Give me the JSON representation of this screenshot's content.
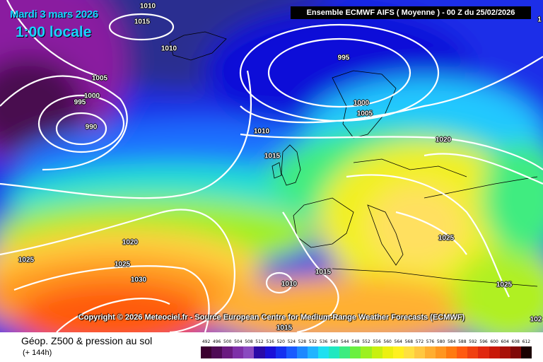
{
  "header": {
    "date": "Mardi 3 mars 2026",
    "local_time": "1:00 locale",
    "model": "Ensemble ECMWF AIFS  ( Moyenne )  - 00 Z du 25/02/2026"
  },
  "copyright": "Copyright © 2026 Meteociel.fr - Source European Centre for Medium-Range Weather Forecasts (ECMWF)",
  "isobars": [
    {
      "text": "1010",
      "id": "iso-1010-top"
    },
    {
      "text": "1015",
      "id": "iso-1015-top"
    },
    {
      "text": "1010",
      "id": "iso-1010-ice"
    },
    {
      "text": "1005",
      "id": "iso-1005-w"
    },
    {
      "text": "1000",
      "id": "iso-1000-w"
    },
    {
      "text": "995",
      "id": "iso-995-w"
    },
    {
      "text": "990",
      "id": "iso-990-w"
    },
    {
      "text": "995",
      "id": "iso-995-n"
    },
    {
      "text": "1000",
      "id": "iso-1000-n"
    },
    {
      "text": "1005",
      "id": "iso-1005-n"
    },
    {
      "text": "1010",
      "id": "iso-1010-mid"
    },
    {
      "text": "1015",
      "id": "iso-1015-mid"
    },
    {
      "text": "1020",
      "id": "iso-1020-e"
    },
    {
      "text": "1020",
      "id": "iso-1020-sw"
    },
    {
      "text": "1025",
      "id": "iso-1025-w"
    },
    {
      "text": "1025",
      "id": "iso-1025-sw"
    },
    {
      "text": "1030",
      "id": "iso-1030-sw"
    },
    {
      "text": "1025",
      "id": "iso-1025-balkan"
    },
    {
      "text": "1015",
      "id": "iso-1015-iberia"
    },
    {
      "text": "1010",
      "id": "iso-1010-iberia"
    },
    {
      "text": "1025",
      "id": "iso-1025-se"
    },
    {
      "text": "1015",
      "id": "iso-1015-bottom"
    },
    {
      "text": "102",
      "id": "iso-102-edge"
    },
    {
      "text": "1",
      "id": "iso-1-edge"
    }
  ],
  "footer": {
    "title": "Géop. Z500 & pression au sol",
    "subtitle": "(+ 144h)"
  },
  "legend": {
    "labels": [
      "492",
      "496",
      "500",
      "504",
      "508",
      "512",
      "516",
      "520",
      "524",
      "528",
      "532",
      "536",
      "540",
      "544",
      "548",
      "552",
      "556",
      "560",
      "564",
      "568",
      "572",
      "576",
      "580",
      "584",
      "588",
      "592",
      "596",
      "600",
      "604",
      "608",
      "612"
    ],
    "colors": [
      "#3b0030",
      "#4e0a55",
      "#6a1a80",
      "#7e30a8",
      "#8a4ac0",
      "#2a0aa8",
      "#1a10d8",
      "#1530f0",
      "#1a5aff",
      "#1e88ff",
      "#22b4ff",
      "#1ee0f0",
      "#20e8c0",
      "#3cec80",
      "#6af040",
      "#9cf020",
      "#c8f010",
      "#ecf010",
      "#fff020",
      "#ffe040",
      "#ffc840",
      "#ffae30",
      "#ff9620",
      "#ff7a10",
      "#ff5a10",
      "#f04010",
      "#e02810",
      "#c81808",
      "#a81008",
      "#800808",
      "#1a0000"
    ]
  }
}
